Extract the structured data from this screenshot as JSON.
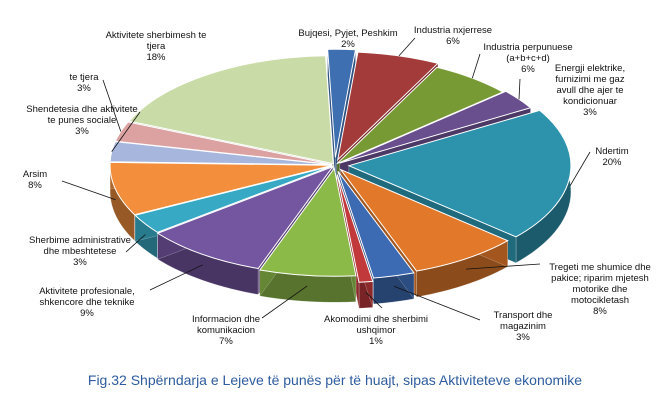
{
  "chart_data": {
    "type": "pie",
    "title": "",
    "caption": "Fig.32 Shpërndarja e Lejeve të punës për të huajt, sipas Aktiviteteve ekonomike",
    "slices": [
      {
        "label": "Bujqesi, Pyjet, Peshkim",
        "value": 2,
        "text": "2%",
        "color": "#3e6fb0"
      },
      {
        "label": "Industria nxjerrese",
        "value": 6,
        "text": "6%",
        "color": "#a33b3b"
      },
      {
        "label": "Industria perpunuese (a+b+c+d)",
        "value": 6,
        "text": "6%",
        "color": "#789a35"
      },
      {
        "label": "Energji elektrike, furnizimi me gaz avull dhe ajer te kondicionuar",
        "value": 3,
        "text": "3%",
        "color": "#6a4f8e"
      },
      {
        "label": "Ndertim",
        "value": 20,
        "text": "20%",
        "color": "#2d93ad"
      },
      {
        "label": "Tregeti me shumice dhe pakice; riparim mjetesh motorike dhe motocikletash",
        "value": 8,
        "text": "8%",
        "color": "#e2792a"
      },
      {
        "label": "Transport dhe magazinim",
        "value": 3,
        "text": "3%",
        "color": "#3d6bb3"
      },
      {
        "label": "Akomodimi dhe sherbimi ushqimor",
        "value": 1,
        "text": "1%",
        "color": "#c2393b"
      },
      {
        "label": "Informacion dhe komunikacion",
        "value": 7,
        "text": "7%",
        "color": "#8cba48"
      },
      {
        "label": "Aktivitete profesionale, shkencore dhe teknike",
        "value": 9,
        "text": "9%",
        "color": "#7455a0"
      },
      {
        "label": "Sherbime administrative dhe mbeshtetese",
        "value": 3,
        "text": "3%",
        "color": "#38a9c4"
      },
      {
        "label": "Arsim",
        "value": 8,
        "text": "8%",
        "color": "#f38f3c"
      },
      {
        "label": "Shendetesia dhe aktivitete te punes sociale",
        "value": 3,
        "text": "3%",
        "color": "#a7b6dc"
      },
      {
        "label": "te tjera",
        "value": 3,
        "text": "3%",
        "color": "#dca2a2"
      },
      {
        "label": "Aktivitete sherbimesh te tjera",
        "value": 18,
        "text": "18%",
        "color": "#c9dba6"
      }
    ]
  }
}
